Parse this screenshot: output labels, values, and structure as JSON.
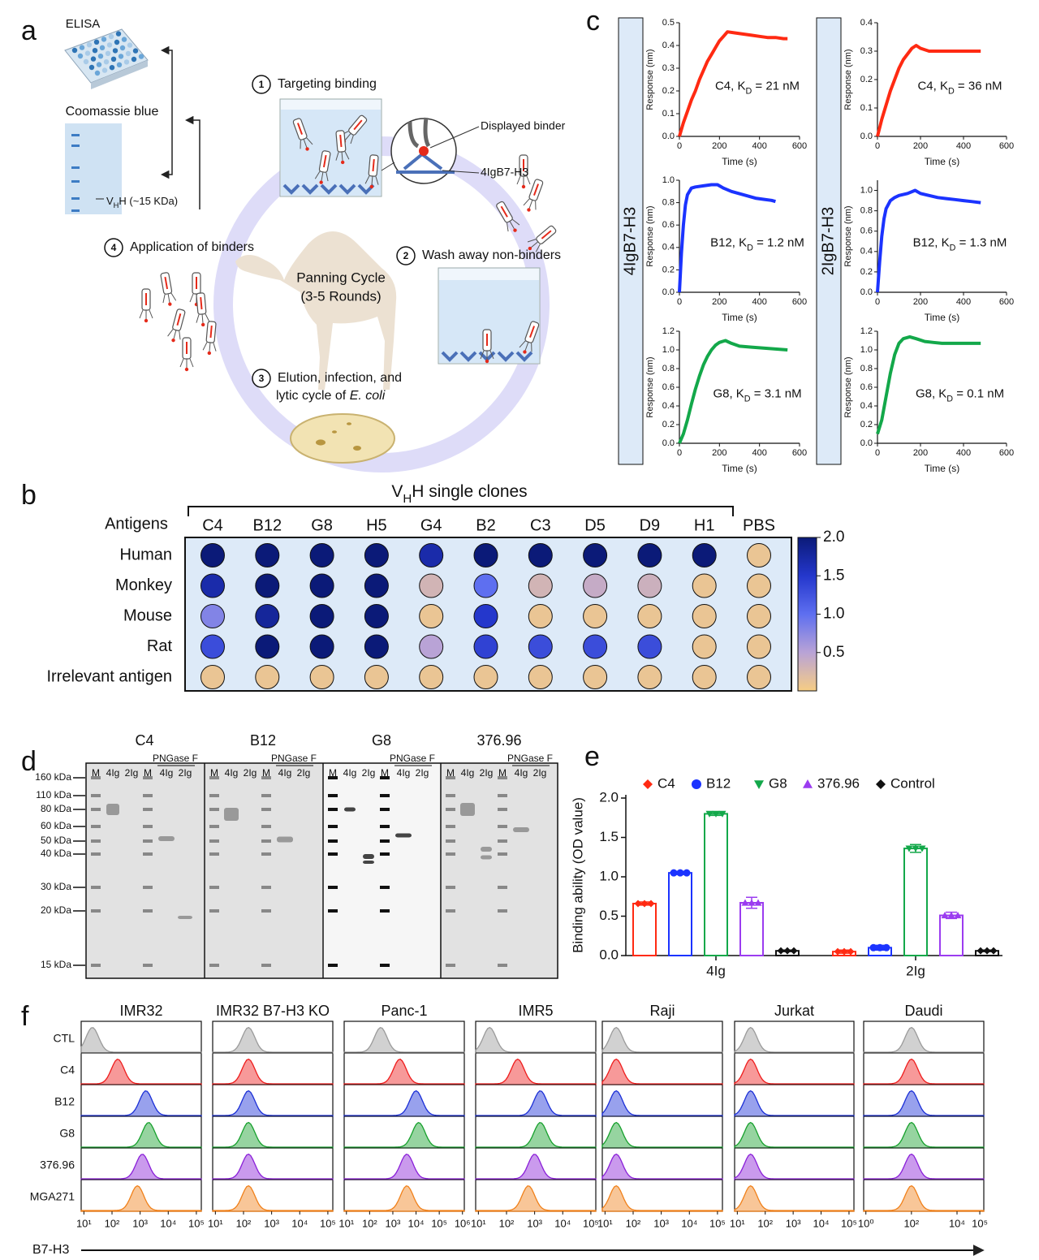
{
  "panel_labels": [
    "a",
    "b",
    "c",
    "d",
    "e",
    "f"
  ],
  "diagram": {
    "elisa": "ELISA",
    "coomassie": "Coomassie blue",
    "vhh": [
      "V",
      "H",
      "H (~15 KDa)"
    ],
    "steps": [
      {
        "number": "1",
        "label": "Targeting binding"
      },
      {
        "number": "2",
        "label": "Wash away non-binders"
      },
      {
        "number": "3",
        "label": [
          "Elution, infection, and",
          "lytic cycle of ",
          "E. coli"
        ]
      },
      {
        "number": "4",
        "label": "Application of binders"
      }
    ],
    "displayed_binder": "Displayed binder",
    "target": "4IgB7-H3",
    "cycle": [
      "Panning Cycle",
      "(3-5 Rounds)"
    ]
  },
  "kinetics_side_labels": [
    "4IgB7-H3",
    "2IgB7-H3"
  ],
  "gel": {
    "groups": [
      {
        "name": "C4",
        "color": "#ff2a12"
      },
      {
        "name": "B12",
        "color": "#1b33ff"
      },
      {
        "name": "G8",
        "color": "#13a84a"
      },
      {
        "name": "376.96",
        "color": "#9b3cf0"
      }
    ],
    "lanes": [
      "M",
      "4Ig",
      "2Ig",
      "M",
      "4Ig",
      "2Ig"
    ],
    "treatment": "PNGase F",
    "ladder": [
      "160 kDa",
      "110 kDa",
      "80 kDa",
      "60 kDa",
      "50 kDa",
      "40 kDa",
      "30 kDa",
      "20 kDa",
      "15 kDa"
    ]
  },
  "chart_data": [
    {
      "type": "dotmatrix",
      "title": [
        "V",
        "H",
        "H single clones"
      ],
      "row_header": "Antigens",
      "categories": [
        "C4",
        "B12",
        "G8",
        "H5",
        "G4",
        "B2",
        "C3",
        "D5",
        "D9",
        "H1",
        "PBS"
      ],
      "rows": [
        "Human",
        "Monkey",
        "Mouse",
        "Rat",
        "Irrelevant antigen"
      ],
      "values": [
        [
          2.0,
          2.0,
          2.0,
          2.0,
          1.7,
          2.0,
          2.0,
          2.0,
          2.0,
          2.0,
          0.1
        ],
        [
          1.7,
          2.0,
          2.0,
          2.0,
          0.3,
          1.0,
          0.3,
          0.4,
          0.35,
          0.1,
          0.1
        ],
        [
          0.8,
          1.8,
          2.0,
          2.0,
          0.1,
          1.5,
          0.1,
          0.1,
          0.1,
          0.1,
          0.1
        ],
        [
          1.3,
          2.0,
          2.0,
          2.0,
          0.5,
          1.4,
          1.3,
          1.3,
          1.3,
          0.1,
          0.1
        ],
        [
          0.1,
          0.1,
          0.1,
          0.1,
          0.1,
          0.1,
          0.1,
          0.1,
          0.1,
          0.1,
          0.1
        ]
      ],
      "zlim": [
        0,
        2
      ],
      "zticks": [
        0.5,
        {
          "value": 1,
          "label": "1.0"
        },
        1.5,
        {
          "value": 2,
          "label": "2.0"
        }
      ],
      "colorscale": [
        "#f6cd84",
        "#b9a3d6",
        "#5e6ff0",
        "#2437cc",
        "#0b1a78"
      ]
    },
    {
      "type": "line",
      "xlabel": "Time (s)",
      "ylabel": "Response (nm)",
      "annotation": [
        "C4, K",
        "D",
        " = 21 nM"
      ],
      "color": "#ff2a12",
      "x": [
        0,
        20,
        40,
        60,
        80,
        100,
        120,
        140,
        160,
        180,
        200,
        220,
        240,
        280,
        320,
        360,
        400,
        440,
        480,
        520,
        540
      ],
      "values": [
        0,
        0.06,
        0.11,
        0.16,
        0.2,
        0.25,
        0.29,
        0.33,
        0.36,
        0.39,
        0.42,
        0.44,
        0.46,
        0.455,
        0.45,
        0.445,
        0.44,
        0.435,
        0.435,
        0.43,
        0.43
      ],
      "xlim": [
        0,
        600
      ],
      "xticks": [
        0,
        200,
        400,
        600
      ],
      "ylim": [
        0,
        0.5
      ],
      "yticks": [
        {
          "value": 0,
          "label": "0.0"
        },
        0.1,
        0.2,
        0.3,
        0.4,
        0.5
      ]
    },
    {
      "type": "line",
      "xlabel": "Time (s)",
      "ylabel": "Response (nm)",
      "annotation": [
        "B12, K",
        "D",
        " = 1.2 nM"
      ],
      "color": "#1b33ff",
      "x": [
        0,
        10,
        20,
        30,
        40,
        60,
        80,
        120,
        160,
        190,
        220,
        260,
        300,
        340,
        380,
        420,
        460,
        480
      ],
      "values": [
        0,
        0.35,
        0.6,
        0.78,
        0.87,
        0.93,
        0.94,
        0.95,
        0.96,
        0.96,
        0.93,
        0.9,
        0.88,
        0.86,
        0.84,
        0.83,
        0.82,
        0.81
      ],
      "xlim": [
        0,
        600
      ],
      "xticks": [
        0,
        200,
        400,
        600
      ],
      "ylim": [
        0,
        1
      ],
      "yticks": [
        {
          "value": 0,
          "label": "0.0"
        },
        0.2,
        0.4,
        0.6,
        0.8,
        {
          "value": 1,
          "label": "1.0"
        }
      ]
    },
    {
      "type": "line",
      "xlabel": "Time (s)",
      "ylabel": "Response (nm)",
      "annotation": [
        "G8, K",
        "D",
        " = 3.1 nM"
      ],
      "color": "#13a84a",
      "x": [
        0,
        20,
        40,
        60,
        80,
        100,
        120,
        140,
        160,
        180,
        200,
        230,
        260,
        300,
        360,
        420,
        480,
        540
      ],
      "values": [
        0,
        0.1,
        0.25,
        0.42,
        0.58,
        0.72,
        0.84,
        0.93,
        1.0,
        1.05,
        1.08,
        1.1,
        1.07,
        1.04,
        1.03,
        1.02,
        1.01,
        1.0
      ],
      "xlim": [
        0,
        600
      ],
      "xticks": [
        0,
        200,
        400,
        600
      ],
      "ylim": [
        0,
        1.2
      ],
      "yticks": [
        {
          "value": 0,
          "label": "0.0"
        },
        0.2,
        0.4,
        0.6,
        0.8,
        {
          "value": 1,
          "label": "1.0"
        },
        1.2
      ]
    },
    {
      "type": "line",
      "xlabel": "Time (s)",
      "ylabel": "Response (nm)",
      "annotation": [
        "C4, K",
        "D",
        " = 36 nM"
      ],
      "color": "#ff2a12",
      "x": [
        0,
        20,
        40,
        60,
        80,
        100,
        120,
        140,
        160,
        180,
        200,
        240,
        280,
        320,
        360,
        400,
        440,
        480
      ],
      "values": [
        0,
        0.06,
        0.11,
        0.16,
        0.2,
        0.24,
        0.27,
        0.29,
        0.31,
        0.32,
        0.31,
        0.3,
        0.3,
        0.3,
        0.3,
        0.3,
        0.3,
        0.3
      ],
      "xlim": [
        0,
        600
      ],
      "xticks": [
        0,
        200,
        400,
        600
      ],
      "ylim": [
        0,
        0.4
      ],
      "yticks": [
        {
          "value": 0,
          "label": "0.0"
        },
        0.1,
        0.2,
        0.3,
        0.4
      ]
    },
    {
      "type": "line",
      "xlabel": "Time (s)",
      "ylabel": "Response (nm)",
      "annotation": [
        "B12, K",
        "D",
        " = 1.3 nM"
      ],
      "color": "#1b33ff",
      "x": [
        0,
        10,
        20,
        30,
        40,
        60,
        80,
        100,
        140,
        175,
        200,
        240,
        280,
        320,
        360,
        400,
        440,
        480
      ],
      "values": [
        0,
        0.3,
        0.55,
        0.72,
        0.82,
        0.9,
        0.93,
        0.95,
        0.97,
        1.0,
        0.97,
        0.95,
        0.93,
        0.92,
        0.91,
        0.9,
        0.89,
        0.88
      ],
      "xlim": [
        0,
        600
      ],
      "xticks": [
        0,
        200,
        400,
        600
      ],
      "ylim": [
        0,
        1.1
      ],
      "yticks": [
        {
          "value": 0,
          "label": "0.0"
        },
        0.2,
        0.4,
        0.6,
        0.8,
        {
          "value": 1,
          "label": "1.0"
        }
      ]
    },
    {
      "type": "line",
      "xlabel": "Time (s)",
      "ylabel": "Response (nm)",
      "annotation": [
        "G8, K",
        "D",
        " = 0.1 nM"
      ],
      "color": "#13a84a",
      "x": [
        0,
        20,
        40,
        60,
        80,
        100,
        120,
        150,
        180,
        220,
        260,
        300,
        360,
        420,
        480
      ],
      "values": [
        0.1,
        0.25,
        0.5,
        0.75,
        0.95,
        1.07,
        1.12,
        1.14,
        1.12,
        1.09,
        1.08,
        1.07,
        1.07,
        1.07,
        1.07
      ],
      "xlim": [
        0,
        600
      ],
      "xticks": [
        0,
        200,
        400,
        600
      ],
      "ylim": [
        0,
        1.2
      ],
      "yticks": [
        {
          "value": 0,
          "label": "0.0"
        },
        0.2,
        0.4,
        0.6,
        0.8,
        {
          "value": 1,
          "label": "1.0"
        },
        1.2
      ]
    },
    {
      "type": "bar",
      "categories": [
        "4Ig",
        "2Ig"
      ],
      "ylabel": "Binding ability (OD value)",
      "ylim": [
        0,
        2
      ],
      "yticks": [
        {
          "value": 0,
          "label": "0.0"
        },
        0.5,
        {
          "value": 1,
          "label": "1.0"
        },
        1.5,
        {
          "value": 2,
          "label": "2.0"
        }
      ],
      "series": [
        {
          "name": "C4",
          "color": "#ff2a12",
          "marker": "diamond",
          "values": [
            0.66,
            0.05
          ],
          "errors": [
            0.02,
            0.02
          ]
        },
        {
          "name": "B12",
          "color": "#1b33ff",
          "marker": "circle",
          "values": [
            1.05,
            0.1
          ],
          "errors": [
            0.02,
            0.03
          ]
        },
        {
          "name": "G8",
          "color": "#13a84a",
          "marker": "triangle-down",
          "values": [
            1.8,
            1.36
          ],
          "errors": [
            0.02,
            0.05
          ]
        },
        {
          "name": "376.96",
          "color": "#9b3cf0",
          "marker": "triangle-up",
          "values": [
            0.67,
            0.51
          ],
          "errors": [
            0.07,
            0.04
          ]
        },
        {
          "name": "Control",
          "color": "#111111",
          "marker": "diamond",
          "values": [
            0.06,
            0.06
          ],
          "errors": [
            0.01,
            0.01
          ]
        }
      ]
    },
    {
      "type": "histogram-grid",
      "log": true,
      "xlabel": "B7-H3",
      "rows": [
        "CTL",
        "C4",
        "B12",
        "G8",
        "376.96",
        "MGA271"
      ],
      "colors": [
        "#9a9a9a",
        "#ee1c1c",
        "#1b2fd6",
        "#16a02c",
        "#8a1fd8",
        "#f0801a"
      ],
      "columns": [
        {
          "name": "IMR32",
          "xlim": [
            8,
            150000
          ],
          "xticks": [
            {
              "value": 10,
              "label": "10¹"
            },
            {
              "value": 100,
              "label": "10²"
            },
            {
              "value": 1000,
              "label": "10³"
            },
            {
              "value": 10000,
              "label": "10⁴"
            },
            {
              "value": 100000,
              "label": "10⁵"
            }
          ],
          "peaks": [
            20,
            160,
            1600,
            2000,
            1200,
            800
          ]
        },
        {
          "name": "IMR32 B7-H3 KO",
          "xlim": [
            8,
            150000
          ],
          "xticks": [
            {
              "value": 10,
              "label": "10¹"
            },
            {
              "value": 100,
              "label": "10²"
            },
            {
              "value": 1000,
              "label": "10³"
            },
            {
              "value": 10000,
              "label": "10⁴"
            },
            {
              "value": 100000,
              "label": "10⁵"
            }
          ],
          "peaks": [
            150,
            150,
            150,
            150,
            150,
            150
          ]
        },
        {
          "name": "Panc-1",
          "xlim": [
            8,
            1200000
          ],
          "xticks": [
            {
              "value": 10,
              "label": "10¹"
            },
            {
              "value": 100,
              "label": "10²"
            },
            {
              "value": 1000,
              "label": "10³"
            },
            {
              "value": 10000,
              "label": "10⁴"
            },
            {
              "value": 100000,
              "label": "10⁵"
            },
            {
              "value": 1000000,
              "label": "10⁶"
            }
          ],
          "peaks": [
            300,
            2000,
            10000,
            13000,
            4000,
            4000
          ]
        },
        {
          "name": "IMR5",
          "xlim": [
            8,
            150000
          ],
          "xticks": [
            {
              "value": 10,
              "label": "10¹"
            },
            {
              "value": 100,
              "label": "10²"
            },
            {
              "value": 1000,
              "label": "10³"
            },
            {
              "value": 10000,
              "label": "10⁴"
            },
            {
              "value": 100000,
              "label": "10⁵"
            }
          ],
          "peaks": [
            25,
            250,
            1600,
            1600,
            1000,
            600
          ]
        },
        {
          "name": "Raji",
          "xlim": [
            8,
            150000
          ],
          "xticks": [
            {
              "value": 10,
              "label": "10¹"
            },
            {
              "value": 100,
              "label": "10²"
            },
            {
              "value": 1000,
              "label": "10³"
            },
            {
              "value": 10000,
              "label": "10⁴"
            },
            {
              "value": 100000,
              "label": "10⁵"
            }
          ],
          "peaks": [
            25,
            25,
            25,
            25,
            25,
            25
          ]
        },
        {
          "name": "Jurkat",
          "xlim": [
            8,
            150000
          ],
          "xticks": [
            {
              "value": 10,
              "label": "10¹"
            },
            {
              "value": 100,
              "label": "10²"
            },
            {
              "value": 1000,
              "label": "10³"
            },
            {
              "value": 10000,
              "label": "10⁴"
            },
            {
              "value": 100000,
              "label": "10⁵"
            }
          ],
          "peaks": [
            30,
            30,
            30,
            30,
            30,
            30
          ]
        },
        {
          "name": "Daudi",
          "xlim": [
            0.8,
            150000
          ],
          "xticks": [
            {
              "value": 1,
              "label": "10⁰"
            },
            {
              "value": 100,
              "label": "10²"
            },
            {
              "value": 10000,
              "label": "10⁴"
            },
            {
              "value": 100000,
              "label": "10⁵"
            }
          ],
          "peaks": [
            100,
            100,
            100,
            100,
            100,
            100
          ]
        }
      ]
    }
  ]
}
